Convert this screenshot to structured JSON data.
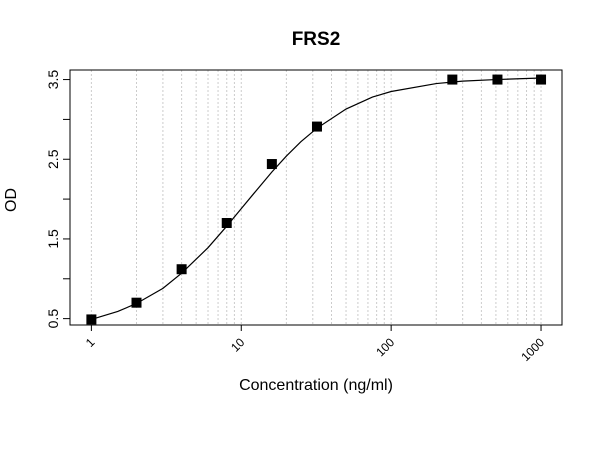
{
  "chart_data": {
    "type": "scatter",
    "title": "FRS2",
    "xlabel": "Concentration (ng/ml)",
    "ylabel": "OD",
    "xscale": "log",
    "x": [
      1,
      2,
      4,
      8,
      16,
      32,
      256,
      512,
      1000
    ],
    "values": [
      0.49,
      0.7,
      1.12,
      1.7,
      2.44,
      2.91,
      3.5,
      3.5,
      3.5
    ],
    "color": "#000000",
    "curve": {
      "x": [
        0.95,
        1,
        1.5,
        2,
        3,
        4,
        6,
        8,
        10,
        12,
        16,
        20,
        25,
        32,
        50,
        75,
        100,
        200,
        300,
        500,
        1000
      ],
      "values": [
        0.48,
        0.49,
        0.59,
        0.69,
        0.88,
        1.07,
        1.39,
        1.66,
        1.88,
        2.06,
        2.34,
        2.54,
        2.72,
        2.89,
        3.13,
        3.28,
        3.35,
        3.45,
        3.48,
        3.5,
        3.52
      ],
      "color": "#000000"
    },
    "xlim": [
      0.72,
      1380
    ],
    "ylim": [
      0.42,
      3.62
    ],
    "xticks": [
      1,
      10,
      100,
      1000
    ],
    "yticks": [
      0.5,
      1.5,
      2.5,
      3.5
    ],
    "yminor": [
      1,
      2,
      3
    ],
    "xgrid": [
      1,
      2,
      3,
      4,
      5,
      6,
      7,
      8,
      9,
      10,
      20,
      30,
      40,
      50,
      60,
      70,
      80,
      90,
      100,
      200,
      300,
      400,
      500,
      600,
      700,
      800,
      900,
      1000
    ],
    "grid": true
  }
}
